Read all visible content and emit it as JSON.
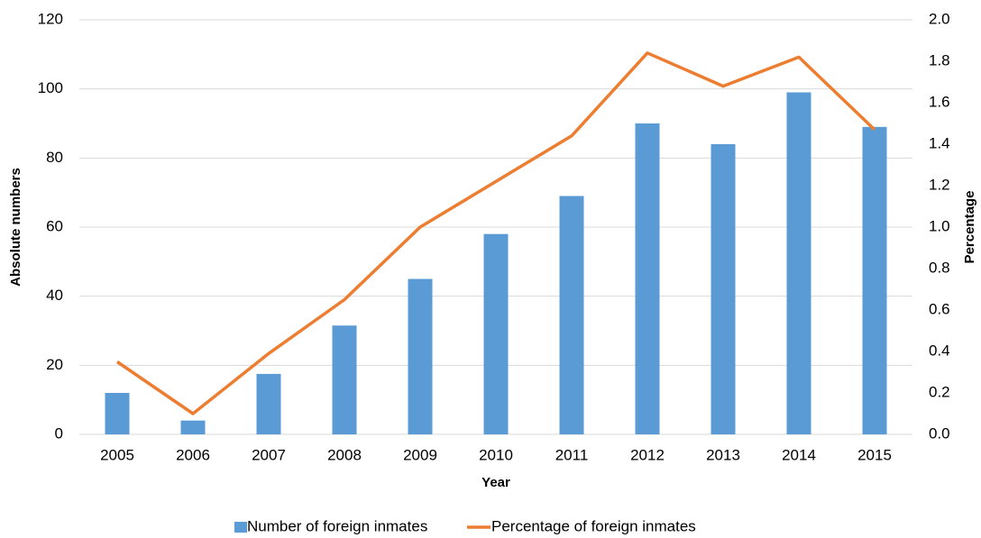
{
  "chart_data": {
    "type": "bar_line",
    "x_label": "Year",
    "y_label": "Absolute numbers",
    "y2_label": "Percentage",
    "categories": [
      "2005",
      "2006",
      "2007",
      "2008",
      "2009",
      "2010",
      "2011",
      "2012",
      "2013",
      "2014",
      "2015"
    ],
    "series": [
      {
        "name": "Number of foreign inmates",
        "type": "bar",
        "color": "#5b9bd5",
        "values": [
          12,
          4,
          17.5,
          31.5,
          45,
          58,
          69,
          90,
          84,
          99,
          89
        ]
      },
      {
        "name": "Percentage of foreign inmates",
        "type": "line",
        "axis": "y2",
        "color": "#ed7d31",
        "values": [
          0.35,
          0.1,
          0.39,
          0.65,
          1.0,
          1.22,
          1.44,
          1.84,
          1.68,
          1.82,
          1.47
        ]
      }
    ],
    "ylim": [
      0,
      120
    ],
    "yticks": [
      0,
      20,
      40,
      60,
      80,
      100,
      120
    ],
    "y2lim": [
      0,
      2
    ],
    "y2ticks": [
      {
        "value": 0,
        "label": "0.0"
      },
      0.2,
      0.4,
      0.6,
      0.8,
      {
        "value": 1,
        "label": "1.0"
      },
      1.2,
      1.4,
      1.6,
      1.8,
      {
        "value": 2,
        "label": "2.0"
      }
    ],
    "grid": true,
    "legend": "bottom"
  }
}
